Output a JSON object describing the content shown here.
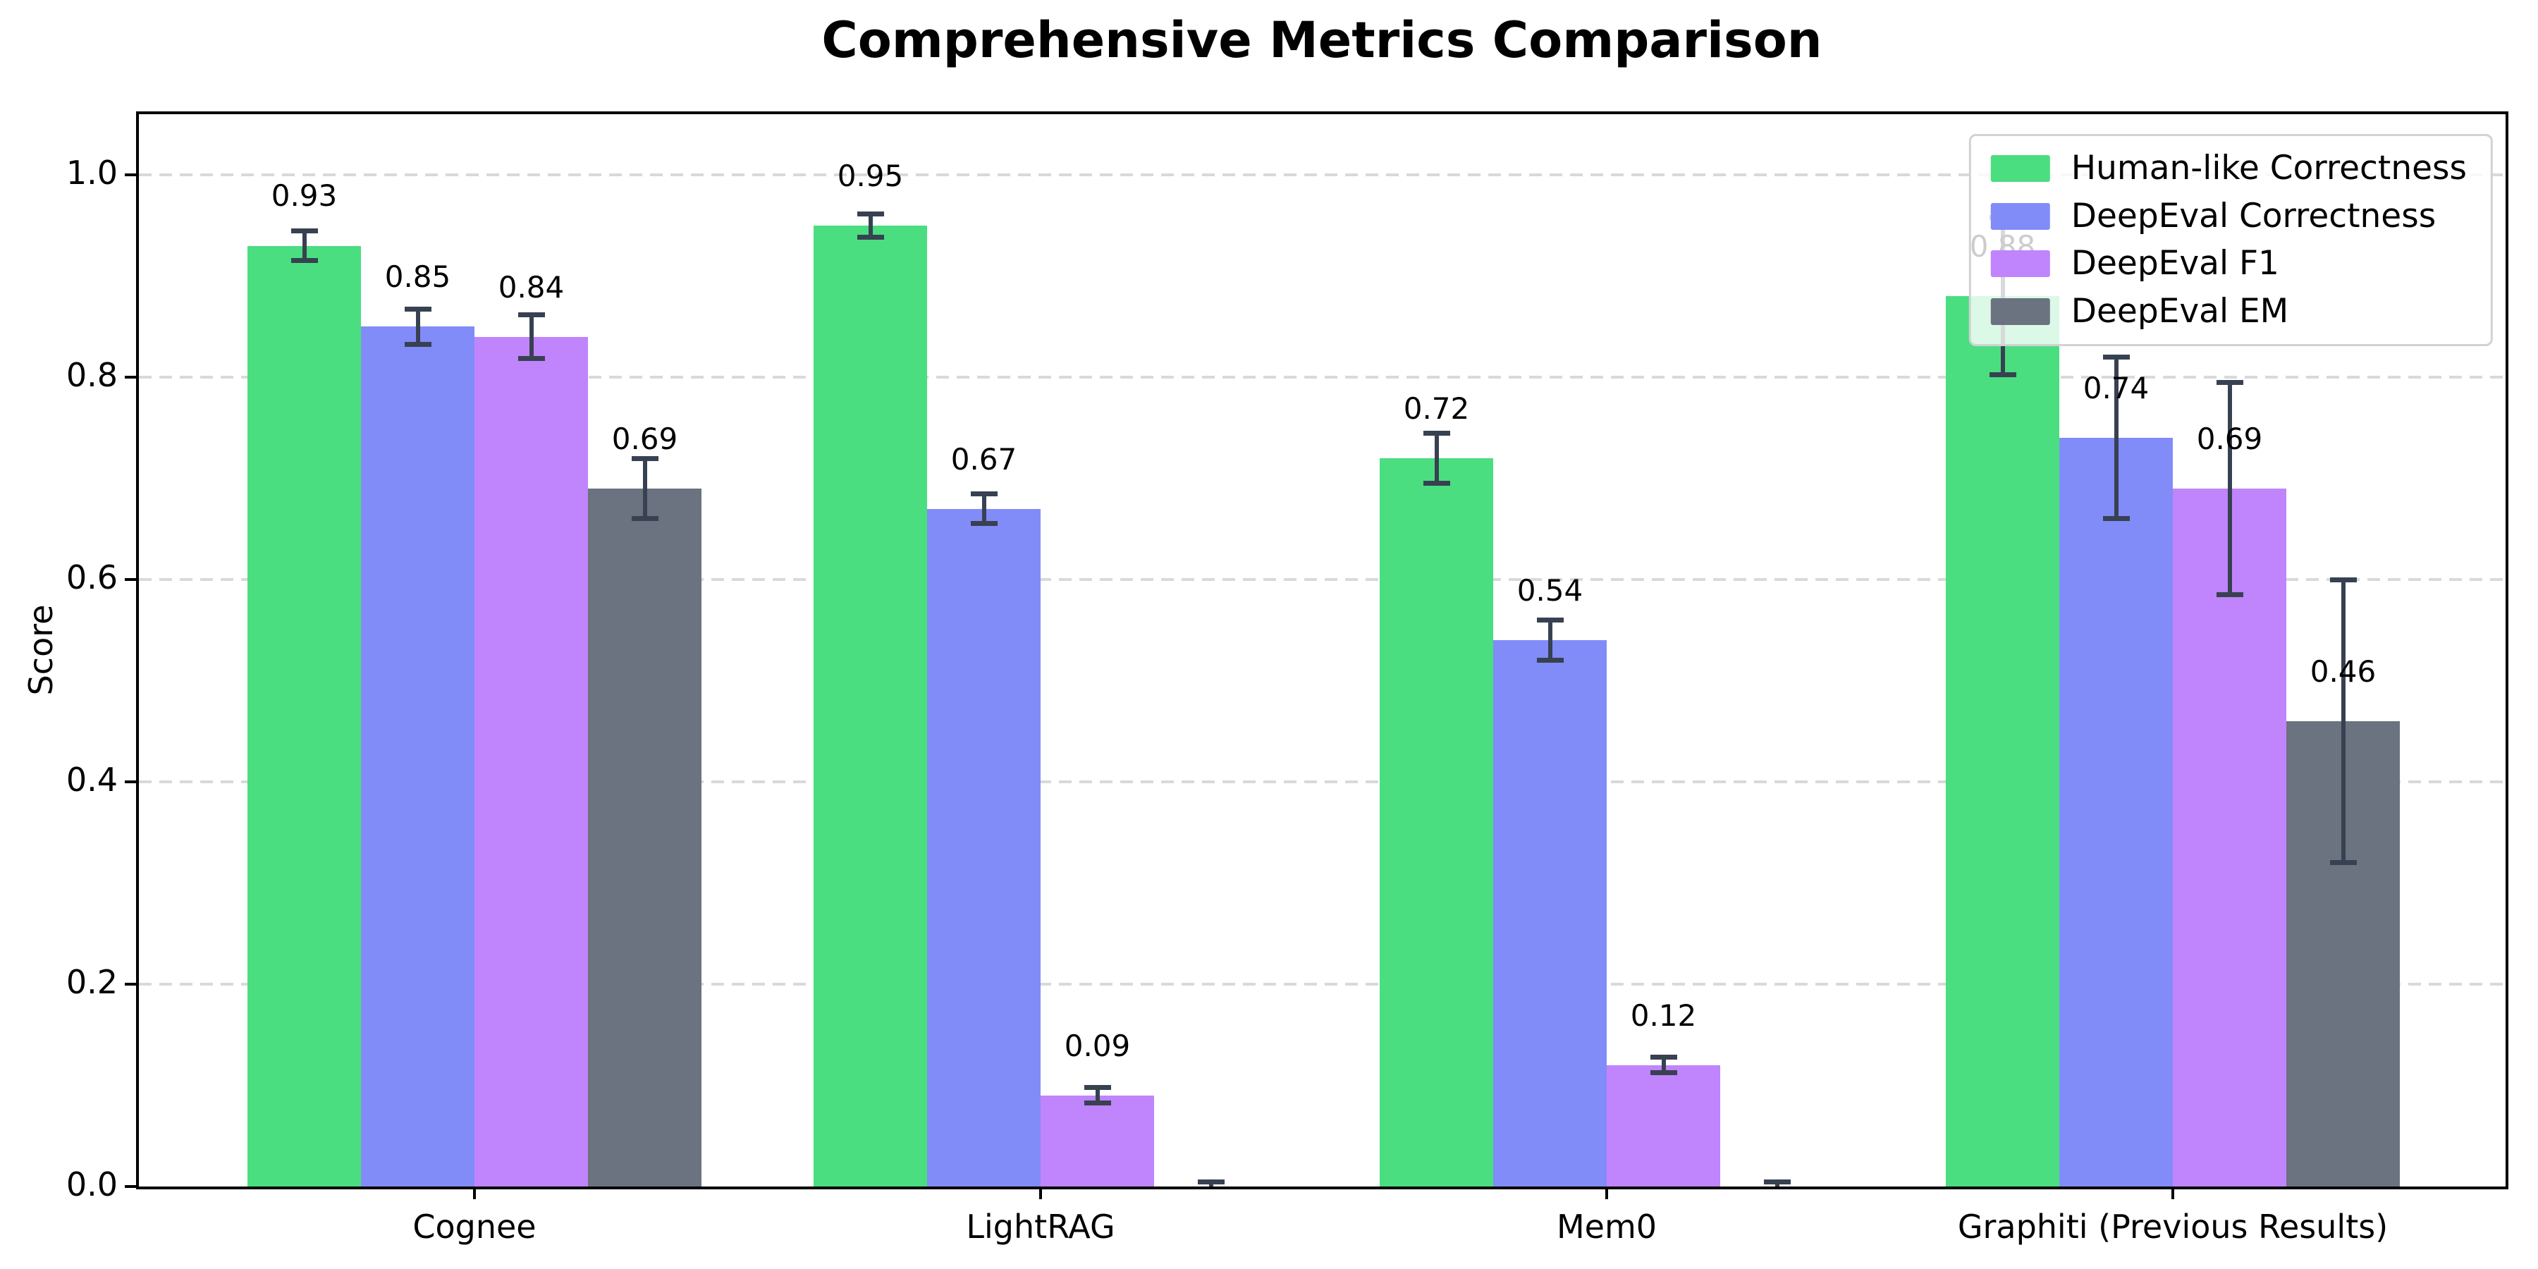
{
  "chart_data": {
    "type": "bar",
    "title": "Comprehensive Metrics Comparison",
    "ylabel": "Score",
    "xlabel": "",
    "categories": [
      "Cognee",
      "LightRAG",
      "Mem0",
      "Graphiti (Previous Results)"
    ],
    "series": [
      {
        "name": "Human-like Correctness",
        "color": "#4ade80",
        "values": [
          0.93,
          0.95,
          0.72,
          0.88
        ],
        "errors": [
          0.015,
          0.012,
          0.025,
          0.078
        ],
        "labels": [
          "0.93",
          "0.95",
          "0.72",
          "0.88"
        ]
      },
      {
        "name": "DeepEval Correctness",
        "color": "#818cf8",
        "values": [
          0.85,
          0.67,
          0.54,
          0.74
        ],
        "errors": [
          0.018,
          0.015,
          0.02,
          0.08
        ],
        "labels": [
          "0.85",
          "0.67",
          "0.54",
          "0.74"
        ]
      },
      {
        "name": "DeepEval F1",
        "color": "#c084fc",
        "values": [
          0.84,
          0.09,
          0.12,
          0.69
        ],
        "errors": [
          0.022,
          0.008,
          0.008,
          0.105
        ],
        "labels": [
          "0.84",
          "0.09",
          "0.12",
          "0.69"
        ]
      },
      {
        "name": "DeepEval EM",
        "color": "#6b7280",
        "values": [
          0.69,
          0.0,
          0.0,
          0.46
        ],
        "errors": [
          0.03,
          0.005,
          0.005,
          0.14
        ],
        "labels": [
          "0.69",
          "",
          "",
          "0.46"
        ]
      }
    ],
    "yticks": [
      "0.0",
      "0.2",
      "0.4",
      "0.6",
      "0.8",
      "1.0"
    ],
    "ylim": [
      0,
      1.06
    ],
    "grid": "horizontal-dashed",
    "legend_position": "upper-right",
    "colors": {
      "error_bar": "#374151",
      "grid": "#d9d9d9",
      "axis": "#000000",
      "background": "#ffffff"
    }
  }
}
